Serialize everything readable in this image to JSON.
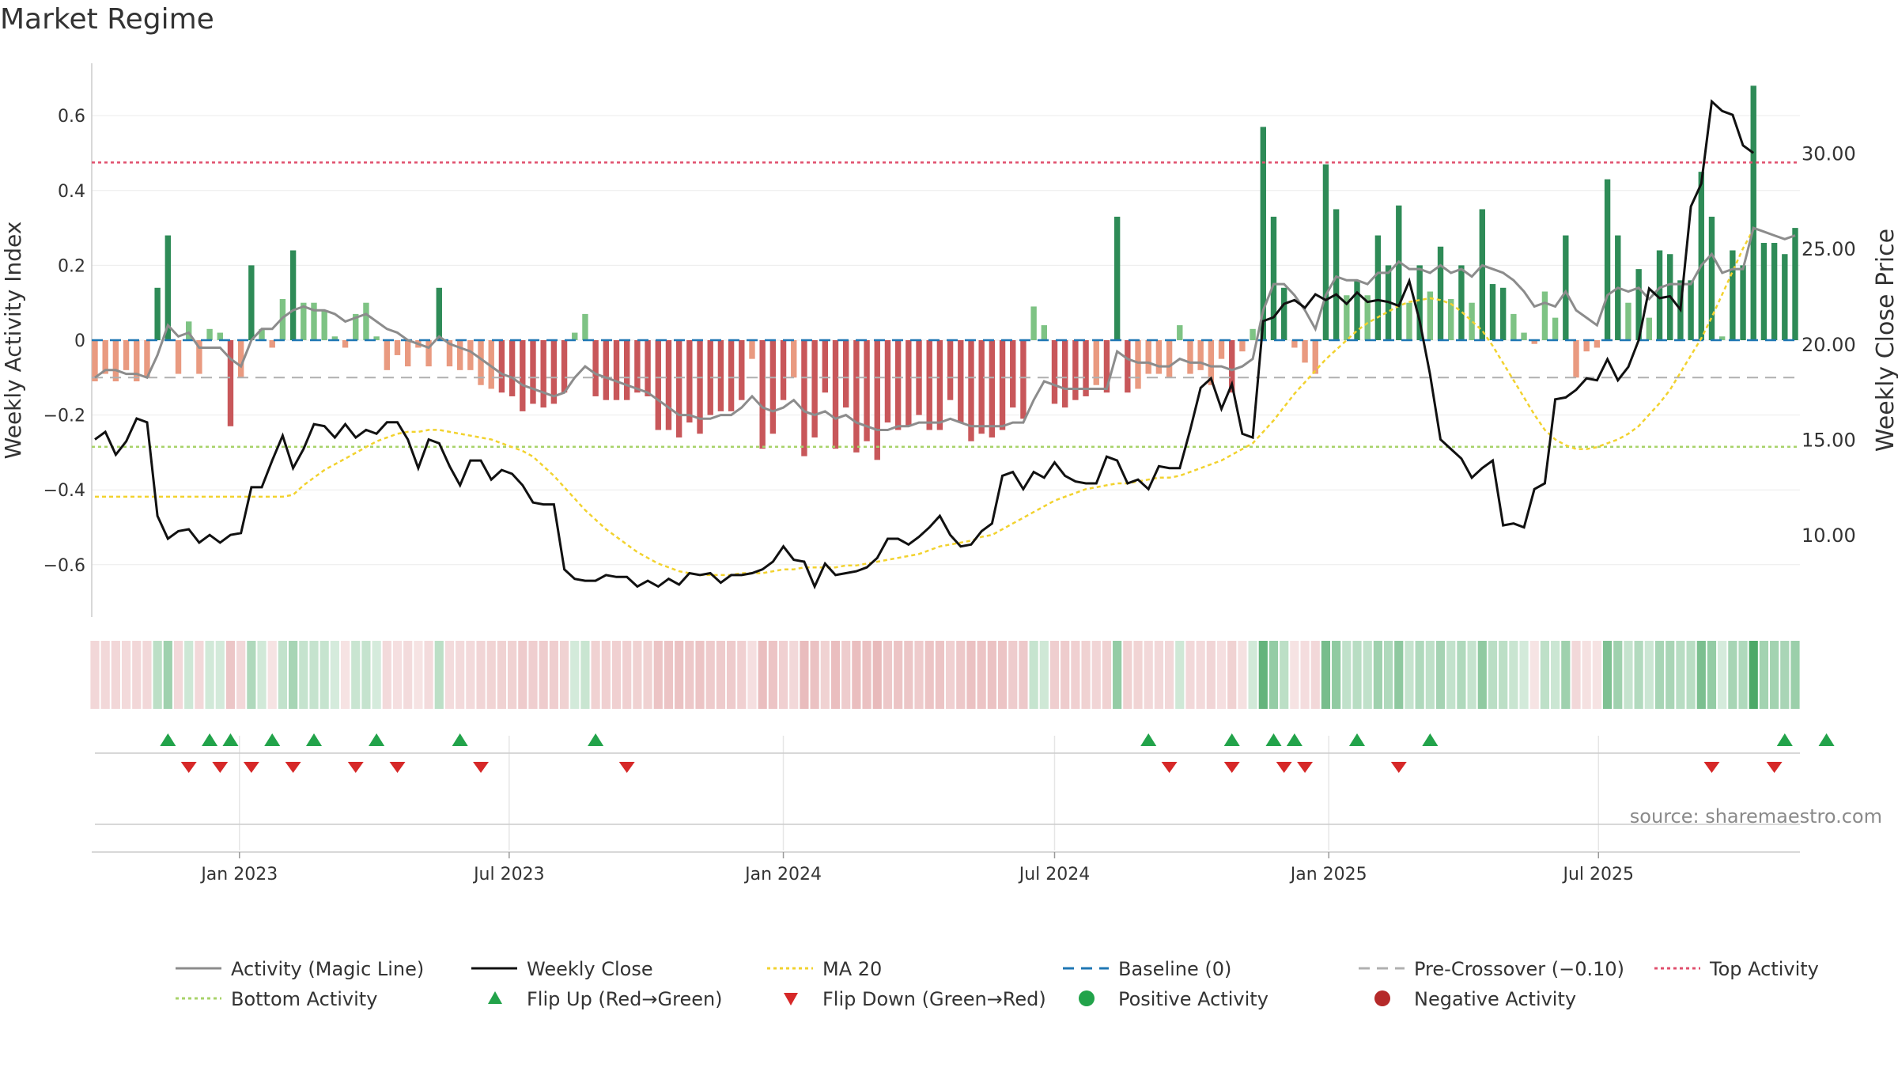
{
  "title": "Market Regime",
  "source_note": "source: sharemaestro.com",
  "colors": {
    "green_dark": "#2e8b57",
    "green_light": "#7ec384",
    "red_dark": "#c8575a",
    "red_light": "#e99a80",
    "magic_line": "#8c8c8c",
    "close": "#111111",
    "ma20": "#f2d22e",
    "baseline": "#1f77b4",
    "pre_crossover": "#b0b0b0",
    "top_activity": "#e0506e",
    "bottom_activity": "#a8d36a",
    "flip_up": "#22a34a",
    "flip_down": "#d62828"
  },
  "chart_data": {
    "type": "bar",
    "ylabel_left": "Weekly Activity Index",
    "ylabel_right": "Weekly Close Price",
    "ylim_left": [
      -0.74,
      0.74
    ],
    "ylim_right": [
      5.7,
      34.7
    ],
    "yticks_left": [
      {
        "v": 0.6,
        "label": "0.6"
      },
      {
        "v": 0.4,
        "label": "0.4"
      },
      {
        "v": 0.2,
        "label": "0.2"
      },
      {
        "v": 0.0,
        "label": "0"
      },
      {
        "v": -0.2,
        "label": "−0.2"
      },
      {
        "v": -0.4,
        "label": "−0.4"
      },
      {
        "v": -0.6,
        "label": "−0.6"
      }
    ],
    "yticks_right": [
      {
        "v": 30,
        "label": "30.00"
      },
      {
        "v": 25,
        "label": "25.00"
      },
      {
        "v": 20,
        "label": "20.00"
      },
      {
        "v": 15,
        "label": "15.00"
      },
      {
        "v": 10,
        "label": "10.00"
      }
    ],
    "x_start": "2022-09-26",
    "x_step_days": 7,
    "xticks": [
      {
        "date": "2023-01-01",
        "label": "Jan 2023"
      },
      {
        "date": "2023-07-01",
        "label": "Jul 2023"
      },
      {
        "date": "2024-01-01",
        "label": "Jan 2024"
      },
      {
        "date": "2024-07-01",
        "label": "Jul 2024"
      },
      {
        "date": "2025-01-01",
        "label": "Jan 2025"
      },
      {
        "date": "2025-07-01",
        "label": "Jul 2025"
      }
    ],
    "top_activity": 0.475,
    "bottom_activity": -0.285,
    "pre_crossover": -0.1,
    "baseline": 0,
    "activity": [
      -0.11,
      -0.09,
      -0.11,
      -0.08,
      -0.11,
      -0.1,
      0.14,
      0.28,
      -0.09,
      0.05,
      -0.09,
      0.03,
      0.02,
      -0.23,
      -0.1,
      0.2,
      0.03,
      -0.02,
      0.11,
      0.24,
      0.1,
      0.1,
      0.08,
      0.01,
      -0.02,
      0.07,
      0.1,
      0.01,
      -0.08,
      -0.04,
      -0.07,
      -0.02,
      -0.07,
      0.14,
      -0.07,
      -0.08,
      -0.08,
      -0.12,
      -0.13,
      -0.14,
      -0.15,
      -0.19,
      -0.17,
      -0.18,
      -0.17,
      -0.14,
      0.02,
      0.07,
      -0.15,
      -0.16,
      -0.16,
      -0.16,
      -0.14,
      -0.15,
      -0.24,
      -0.24,
      -0.26,
      -0.22,
      -0.25,
      -0.2,
      -0.19,
      -0.19,
      -0.16,
      -0.05,
      -0.29,
      -0.25,
      -0.16,
      -0.1,
      -0.31,
      -0.26,
      -0.14,
      -0.29,
      -0.18,
      -0.3,
      -0.27,
      -0.32,
      -0.22,
      -0.24,
      -0.23,
      -0.2,
      -0.24,
      -0.24,
      -0.16,
      -0.22,
      -0.27,
      -0.25,
      -0.26,
      -0.24,
      -0.18,
      -0.21,
      0.09,
      0.04,
      -0.17,
      -0.18,
      -0.16,
      -0.15,
      -0.12,
      -0.14,
      0.33,
      -0.14,
      -0.13,
      -0.09,
      -0.09,
      -0.1,
      0.04,
      -0.09,
      -0.08,
      -0.12,
      -0.05,
      -0.14,
      -0.03,
      0.03,
      0.57,
      0.33,
      0.14,
      -0.02,
      -0.06,
      -0.09,
      0.47,
      0.35,
      0.12,
      0.16,
      0.12,
      0.28,
      0.2,
      0.36,
      0.1,
      0.2,
      0.13,
      0.25,
      0.11,
      0.2,
      0.1,
      0.35,
      0.15,
      0.14,
      0.07,
      0.02,
      -0.01,
      0.13,
      0.06,
      0.28,
      -0.1,
      -0.03,
      -0.02,
      0.43,
      0.28,
      0.1,
      0.19,
      0.06,
      0.24,
      0.23,
      0.16,
      0.16,
      0.45,
      0.33,
      0.01,
      0.24,
      0.2,
      0.68,
      0.26,
      0.26,
      0.23,
      0.3
    ],
    "magic_line": [
      -0.1,
      -0.08,
      -0.08,
      -0.09,
      -0.09,
      -0.1,
      -0.04,
      0.04,
      0.01,
      0.02,
      -0.02,
      -0.02,
      -0.02,
      -0.05,
      -0.07,
      0.0,
      0.03,
      0.03,
      0.06,
      0.08,
      0.09,
      0.08,
      0.08,
      0.07,
      0.05,
      0.06,
      0.07,
      0.05,
      0.03,
      0.02,
      0.0,
      -0.01,
      -0.02,
      0.01,
      -0.01,
      -0.02,
      -0.03,
      -0.05,
      -0.07,
      -0.09,
      -0.1,
      -0.12,
      -0.13,
      -0.14,
      -0.15,
      -0.14,
      -0.1,
      -0.07,
      -0.09,
      -0.1,
      -0.11,
      -0.12,
      -0.13,
      -0.14,
      -0.16,
      -0.18,
      -0.2,
      -0.2,
      -0.21,
      -0.21,
      -0.2,
      -0.2,
      -0.18,
      -0.15,
      -0.18,
      -0.19,
      -0.18,
      -0.16,
      -0.19,
      -0.2,
      -0.19,
      -0.21,
      -0.2,
      -0.22,
      -0.23,
      -0.24,
      -0.24,
      -0.23,
      -0.23,
      -0.22,
      -0.22,
      -0.22,
      -0.21,
      -0.22,
      -0.23,
      -0.23,
      -0.23,
      -0.23,
      -0.22,
      -0.22,
      -0.16,
      -0.11,
      -0.12,
      -0.13,
      -0.13,
      -0.13,
      -0.13,
      -0.13,
      -0.03,
      -0.05,
      -0.06,
      -0.06,
      -0.07,
      -0.07,
      -0.05,
      -0.06,
      -0.06,
      -0.07,
      -0.07,
      -0.08,
      -0.07,
      -0.05,
      0.08,
      0.15,
      0.15,
      0.12,
      0.08,
      0.03,
      0.12,
      0.17,
      0.16,
      0.16,
      0.15,
      0.18,
      0.18,
      0.21,
      0.19,
      0.19,
      0.18,
      0.2,
      0.18,
      0.19,
      0.17,
      0.2,
      0.19,
      0.18,
      0.16,
      0.13,
      0.09,
      0.1,
      0.09,
      0.13,
      0.08,
      0.06,
      0.04,
      0.12,
      0.14,
      0.13,
      0.14,
      0.11,
      0.14,
      0.15,
      0.15,
      0.15,
      0.2,
      0.23,
      0.18,
      0.19,
      0.19,
      0.3,
      0.29,
      0.28,
      0.27,
      0.28
    ],
    "weekly_close": [
      15.0,
      15.4,
      14.2,
      14.9,
      16.1,
      15.9,
      11.0,
      9.8,
      10.2,
      10.3,
      9.6,
      10.0,
      9.6,
      10.0,
      10.1,
      12.5,
      12.5,
      13.9,
      15.2,
      13.5,
      14.5,
      15.8,
      15.7,
      15.1,
      15.8,
      15.1,
      15.5,
      15.3,
      15.9,
      15.9,
      15.0,
      13.5,
      15.0,
      14.8,
      13.6,
      12.6,
      13.9,
      13.9,
      12.9,
      13.4,
      13.2,
      12.6,
      11.7,
      11.6,
      11.6,
      8.2,
      7.7,
      7.6,
      7.6,
      7.9,
      7.8,
      7.8,
      7.3,
      7.6,
      7.3,
      7.7,
      7.4,
      8.0,
      7.9,
      8.0,
      7.5,
      7.9,
      7.9,
      8.0,
      8.2,
      8.6,
      9.4,
      8.7,
      8.6,
      7.3,
      8.5,
      7.9,
      8.0,
      8.1,
      8.3,
      8.8,
      9.8,
      9.8,
      9.5,
      9.9,
      10.4,
      11.0,
      10.0,
      9.4,
      9.5,
      10.2,
      10.6,
      13.1,
      13.3,
      12.4,
      13.3,
      13.0,
      13.8,
      13.1,
      12.8,
      12.7,
      12.7,
      14.1,
      13.9,
      12.7,
      12.9,
      12.4,
      13.6,
      13.5,
      13.5,
      15.5,
      17.7,
      18.2,
      16.6,
      17.9,
      15.3,
      15.1,
      21.2,
      21.4,
      22.1,
      22.3,
      21.9,
      22.6,
      22.3,
      22.6,
      22.1,
      22.7,
      22.2,
      22.3,
      22.2,
      22.0,
      23.3,
      21.2,
      18.4,
      15.0,
      14.5,
      14.0,
      13.0,
      13.5,
      13.9,
      10.5,
      10.6,
      10.4,
      12.4,
      12.7,
      17.1,
      17.2,
      17.6,
      18.2,
      18.1,
      19.2,
      18.1,
      18.8,
      20.2,
      22.9,
      22.4,
      22.5,
      21.8,
      27.2,
      28.4,
      32.7,
      32.2,
      32.0,
      30.4,
      30.0
    ],
    "ma20": [
      12.0,
      12.0,
      12.0,
      12.0,
      12.0,
      12.0,
      12.0,
      12.0,
      12.0,
      12.0,
      12.0,
      12.0,
      12.0,
      12.0,
      12.0,
      12.0,
      12.0,
      12.0,
      12.0,
      12.1,
      12.6,
      13.0,
      13.4,
      13.7,
      14.0,
      14.3,
      14.6,
      14.9,
      15.1,
      15.3,
      15.4,
      15.4,
      15.5,
      15.5,
      15.4,
      15.3,
      15.2,
      15.1,
      15.0,
      14.8,
      14.6,
      14.4,
      14.1,
      13.6,
      13.1,
      12.5,
      11.9,
      11.3,
      10.8,
      10.3,
      9.9,
      9.5,
      9.1,
      8.8,
      8.5,
      8.3,
      8.1,
      8.0,
      7.9,
      7.9,
      7.9,
      7.9,
      8.0,
      8.0,
      8.0,
      8.1,
      8.2,
      8.2,
      8.3,
      8.3,
      8.3,
      8.3,
      8.4,
      8.4,
      8.5,
      8.6,
      8.7,
      8.8,
      8.9,
      9.0,
      9.2,
      9.4,
      9.5,
      9.6,
      9.7,
      9.9,
      10.0,
      10.3,
      10.6,
      10.9,
      11.2,
      11.5,
      11.8,
      12.0,
      12.2,
      12.4,
      12.5,
      12.6,
      12.7,
      12.7,
      12.8,
      12.9,
      13.0,
      13.0,
      13.1,
      13.3,
      13.5,
      13.7,
      13.9,
      14.2,
      14.5,
      14.8,
      15.4,
      16.0,
      16.7,
      17.4,
      18.0,
      18.6,
      19.2,
      19.7,
      20.2,
      20.7,
      21.1,
      21.4,
      21.7,
      22.0,
      22.2,
      22.3,
      22.4,
      22.3,
      22.1,
      21.7,
      21.2,
      20.7,
      19.9,
      19.0,
      18.1,
      17.2,
      16.3,
      15.5,
      15.0,
      14.7,
      14.5,
      14.5,
      14.6,
      14.8,
      15.0,
      15.3,
      15.7,
      16.3,
      16.9,
      17.6,
      18.5,
      19.4,
      20.3,
      21.4,
      22.6,
      23.8,
      25.0,
      26.0
    ],
    "flip_up": [
      7,
      11,
      13,
      17,
      21,
      27,
      35,
      48,
      101,
      109,
      113,
      115,
      121,
      128,
      162,
      166
    ],
    "flip_down": [
      9,
      12,
      15,
      19,
      25,
      29,
      37,
      51,
      103,
      109,
      114,
      116,
      125,
      155,
      161
    ]
  },
  "legend": [
    {
      "label": "Activity (Magic Line)",
      "marker": "line",
      "color": "#8c8c8c",
      "dash": ""
    },
    {
      "label": "Weekly Close",
      "marker": "line",
      "color": "#111111",
      "dash": ""
    },
    {
      "label": "MA 20",
      "marker": "line",
      "color": "#f2d22e",
      "dash": "4,4"
    },
    {
      "label": "Baseline (0)",
      "marker": "line",
      "color": "#1f77b4",
      "dash": "14,9"
    },
    {
      "label": "Pre-Crossover (−0.10)",
      "marker": "line",
      "color": "#b0b0b0",
      "dash": "14,9"
    },
    {
      "label": "Top Activity",
      "marker": "line",
      "color": "#e0506e",
      "dash": "4,4"
    },
    {
      "label": "Bottom Activity",
      "marker": "line",
      "color": "#a8d36a",
      "dash": "4,4"
    },
    {
      "label": "Flip Up (Red→Green)",
      "marker": "triangle-up",
      "color": "#22a34a",
      "dash": ""
    },
    {
      "label": "Flip Down (Green→Red)",
      "marker": "triangle-down",
      "color": "#d62828",
      "dash": ""
    },
    {
      "label": "Positive Activity",
      "marker": "circle",
      "color": "#22a34a",
      "dash": ""
    },
    {
      "label": "Negative Activity",
      "marker": "circle",
      "color": "#b52a2a",
      "dash": ""
    }
  ]
}
